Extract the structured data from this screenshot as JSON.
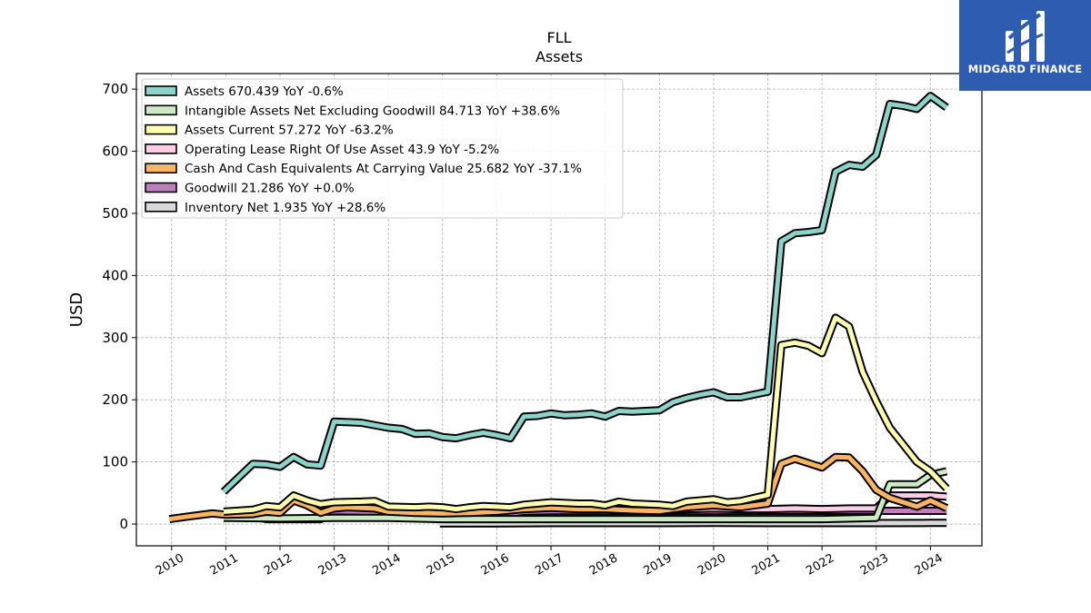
{
  "chart_data": {
    "type": "line",
    "title": "FLL",
    "subtitle": "Assets",
    "ylabel": "USD",
    "xlabel": "",
    "ylim": [
      -35,
      725
    ],
    "xlim": [
      2009.35,
      2024.95
    ],
    "y_ticks": [
      0,
      100,
      200,
      300,
      400,
      500,
      600,
      700
    ],
    "x_ticks": [
      2010,
      2011,
      2012,
      2013,
      2014,
      2015,
      2016,
      2017,
      2018,
      2019,
      2020,
      2021,
      2022,
      2023,
      2024
    ],
    "grid": true,
    "legend_position": "top-left",
    "series": [
      {
        "name": "Goodwill",
        "legend": "Goodwill  21.286 YoY +0.0%",
        "color": "#bc80bd",
        "points": [
          [
            2010.96,
            12
          ],
          [
            2011.5,
            12
          ],
          [
            2011.75,
            8
          ],
          [
            2012.25,
            8
          ],
          [
            2012.75,
            8
          ],
          [
            2013.0,
            21
          ],
          [
            2013.5,
            20
          ],
          [
            2014.0,
            17
          ],
          [
            2014.5,
            17
          ],
          [
            2015.0,
            17
          ],
          [
            2015.5,
            17
          ],
          [
            2016.0,
            17
          ],
          [
            2016.25,
            17
          ],
          [
            2016.5,
            20
          ],
          [
            2017.0,
            21
          ],
          [
            2018.0,
            21
          ],
          [
            2019.0,
            21
          ],
          [
            2019.5,
            21
          ],
          [
            2020.0,
            21
          ],
          [
            2021.0,
            21.3
          ],
          [
            2022.0,
            21.3
          ],
          [
            2023.0,
            21.3
          ],
          [
            2024.0,
            21.3
          ],
          [
            2024.3,
            21.3
          ]
        ]
      },
      {
        "name": "Inventory Net",
        "legend": "Inventory Net  1.935 YoY +28.6%",
        "color": "#d9d9d9",
        "points": [
          [
            2014.95,
            1
          ],
          [
            2016.0,
            1
          ],
          [
            2017.0,
            1.5
          ],
          [
            2018.0,
            1.5
          ],
          [
            2019.0,
            1.5
          ],
          [
            2020.0,
            1.8
          ],
          [
            2021.0,
            1.5
          ],
          [
            2022.0,
            1.6
          ],
          [
            2023.0,
            1.5
          ],
          [
            2024.0,
            1.9
          ],
          [
            2024.3,
            1.9
          ]
        ]
      },
      {
        "name": "Operating Lease Right Of Use Asset",
        "legend": "Operating Lease Right Of Use Asset  43.9 YoY -5.2%",
        "color": "#fccde5",
        "points": [
          [
            2019.0,
            20
          ],
          [
            2019.5,
            24
          ],
          [
            2020.0,
            25
          ],
          [
            2020.5,
            24
          ],
          [
            2021.0,
            24
          ],
          [
            2021.5,
            25
          ],
          [
            2022.0,
            24
          ],
          [
            2022.5,
            25
          ],
          [
            2023.0,
            25
          ],
          [
            2023.25,
            46
          ],
          [
            2023.75,
            46
          ],
          [
            2024.0,
            46
          ],
          [
            2024.3,
            44
          ]
        ]
      },
      {
        "name": "Intangible Assets Net Excluding Goodwill",
        "legend": "Intangible Assets Net Excluding Goodwill  84.713 YoY +38.6%",
        "color": "#ccebc5",
        "points": [
          [
            2010.96,
            10
          ],
          [
            2012.0,
            9
          ],
          [
            2013.0,
            10
          ],
          [
            2014.0,
            10
          ],
          [
            2015.0,
            8
          ],
          [
            2016.0,
            8
          ],
          [
            2017.0,
            8
          ],
          [
            2018.0,
            8
          ],
          [
            2019.0,
            8
          ],
          [
            2020.0,
            8
          ],
          [
            2021.0,
            8
          ],
          [
            2022.0,
            8
          ],
          [
            2023.0,
            10
          ],
          [
            2023.25,
            64
          ],
          [
            2023.75,
            64
          ],
          [
            2024.0,
            79
          ],
          [
            2024.3,
            85
          ]
        ]
      },
      {
        "name": "Cash And Cash Equivalents At Carrying Value",
        "legend": "Cash And Cash Equivalents At Carrying Value  25.682 YoY -37.1%",
        "color": "#fdb462",
        "points": [
          [
            2009.96,
            8
          ],
          [
            2010.3,
            12
          ],
          [
            2010.75,
            17
          ],
          [
            2011.0,
            15
          ],
          [
            2011.5,
            16
          ],
          [
            2011.75,
            20
          ],
          [
            2012.0,
            18
          ],
          [
            2012.25,
            38
          ],
          [
            2012.5,
            30
          ],
          [
            2012.75,
            18
          ],
          [
            2013.0,
            25
          ],
          [
            2013.25,
            27
          ],
          [
            2013.5,
            26
          ],
          [
            2013.75,
            25
          ],
          [
            2014.0,
            20
          ],
          [
            2014.5,
            18
          ],
          [
            2015.0,
            17
          ],
          [
            2015.5,
            18
          ],
          [
            2016.0,
            20
          ],
          [
            2016.5,
            24
          ],
          [
            2017.0,
            26
          ],
          [
            2017.5,
            24
          ],
          [
            2018.0,
            24
          ],
          [
            2018.5,
            22
          ],
          [
            2019.0,
            21
          ],
          [
            2019.5,
            27
          ],
          [
            2020.0,
            30
          ],
          [
            2020.5,
            27
          ],
          [
            2021.0,
            33
          ],
          [
            2021.25,
            97
          ],
          [
            2021.5,
            105
          ],
          [
            2021.75,
            98
          ],
          [
            2022.0,
            91
          ],
          [
            2022.25,
            108
          ],
          [
            2022.5,
            107
          ],
          [
            2022.75,
            85
          ],
          [
            2023.0,
            55
          ],
          [
            2023.25,
            42
          ],
          [
            2023.75,
            28
          ],
          [
            2024.0,
            38
          ],
          [
            2024.3,
            25.7
          ]
        ]
      },
      {
        "name": "Assets Current",
        "legend": "Assets Current  57.272 YoY -63.2%",
        "color": "#ffffb3",
        "points": [
          [
            2010.96,
            20
          ],
          [
            2011.5,
            23
          ],
          [
            2011.75,
            29
          ],
          [
            2012.0,
            27
          ],
          [
            2012.25,
            46
          ],
          [
            2012.5,
            38
          ],
          [
            2012.75,
            32
          ],
          [
            2013.0,
            35
          ],
          [
            2013.5,
            36
          ],
          [
            2013.75,
            37
          ],
          [
            2014.0,
            28
          ],
          [
            2014.5,
            27
          ],
          [
            2014.75,
            28
          ],
          [
            2015.0,
            27
          ],
          [
            2015.25,
            24
          ],
          [
            2015.5,
            27
          ],
          [
            2015.75,
            29
          ],
          [
            2016.0,
            28
          ],
          [
            2016.25,
            27
          ],
          [
            2016.5,
            31
          ],
          [
            2017.0,
            35
          ],
          [
            2017.5,
            33
          ],
          [
            2017.75,
            33
          ],
          [
            2018.0,
            30
          ],
          [
            2018.25,
            36
          ],
          [
            2018.5,
            33
          ],
          [
            2019.0,
            31
          ],
          [
            2019.25,
            29
          ],
          [
            2019.5,
            36
          ],
          [
            2020.0,
            40
          ],
          [
            2020.25,
            35
          ],
          [
            2020.5,
            37
          ],
          [
            2021.0,
            47
          ],
          [
            2021.25,
            288
          ],
          [
            2021.5,
            292
          ],
          [
            2021.75,
            287
          ],
          [
            2022.0,
            275
          ],
          [
            2022.25,
            332
          ],
          [
            2022.5,
            318
          ],
          [
            2022.75,
            245
          ],
          [
            2023.0,
            198
          ],
          [
            2023.25,
            155
          ],
          [
            2023.75,
            100
          ],
          [
            2024.0,
            85
          ],
          [
            2024.3,
            57.3
          ]
        ]
      },
      {
        "name": "Assets",
        "legend": "Assets  670.439 YoY -0.6%",
        "color": "#8dd3c7",
        "points": [
          [
            2010.96,
            52
          ],
          [
            2011.5,
            97
          ],
          [
            2011.75,
            96
          ],
          [
            2012.0,
            92
          ],
          [
            2012.25,
            108
          ],
          [
            2012.5,
            96
          ],
          [
            2012.75,
            94
          ],
          [
            2013.0,
            165
          ],
          [
            2013.5,
            163
          ],
          [
            2014.0,
            155
          ],
          [
            2014.25,
            153
          ],
          [
            2014.5,
            145
          ],
          [
            2014.75,
            146
          ],
          [
            2015.0,
            140
          ],
          [
            2015.25,
            138
          ],
          [
            2015.5,
            143
          ],
          [
            2015.75,
            147
          ],
          [
            2016.0,
            143
          ],
          [
            2016.25,
            138
          ],
          [
            2016.5,
            173
          ],
          [
            2016.75,
            174
          ],
          [
            2017.0,
            178
          ],
          [
            2017.25,
            175
          ],
          [
            2017.5,
            176
          ],
          [
            2017.75,
            178
          ],
          [
            2018.0,
            173
          ],
          [
            2018.25,
            182
          ],
          [
            2018.5,
            181
          ],
          [
            2019.0,
            183
          ],
          [
            2019.25,
            196
          ],
          [
            2019.5,
            203
          ],
          [
            2019.75,
            208
          ],
          [
            2020.0,
            212
          ],
          [
            2020.25,
            204
          ],
          [
            2020.5,
            204
          ],
          [
            2021.0,
            213
          ],
          [
            2021.25,
            455
          ],
          [
            2021.5,
            468
          ],
          [
            2021.75,
            470
          ],
          [
            2022.0,
            473
          ],
          [
            2022.25,
            567
          ],
          [
            2022.5,
            578
          ],
          [
            2022.75,
            575
          ],
          [
            2023.0,
            594
          ],
          [
            2023.25,
            676
          ],
          [
            2023.5,
            673
          ],
          [
            2023.75,
            668
          ],
          [
            2024.0,
            689
          ],
          [
            2024.3,
            670.4
          ]
        ]
      }
    ]
  },
  "legend_items": [
    {
      "label": "Assets  670.439 YoY -0.6%",
      "color": "#8dd3c7"
    },
    {
      "label": "Intangible Assets Net Excluding Goodwill  84.713 YoY +38.6%",
      "color": "#ccebc5"
    },
    {
      "label": "Assets Current  57.272 YoY -63.2%",
      "color": "#ffffb3"
    },
    {
      "label": "Operating Lease Right Of Use Asset  43.9 YoY -5.2%",
      "color": "#fccde5"
    },
    {
      "label": "Cash And Cash Equivalents At Carrying Value  25.682 YoY -37.1%",
      "color": "#fdb462"
    },
    {
      "label": "Goodwill  21.286 YoY +0.0%",
      "color": "#bc80bd"
    },
    {
      "label": "Inventory Net  1.935 YoY +28.6%",
      "color": "#d9d9d9"
    }
  ],
  "logo": {
    "text": "MIDGARD FINANCE",
    "color": "#2d5cb0"
  }
}
